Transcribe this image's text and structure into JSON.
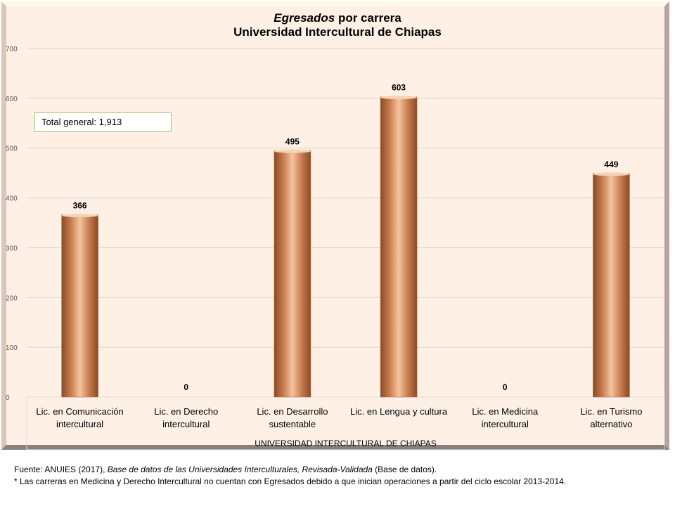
{
  "chart_data": {
    "type": "bar",
    "title_italic": "Egresados",
    "title_rest": " por carrera",
    "subtitle": "Universidad Intercultural de Chiapas",
    "categories": [
      "Lic. en Comunicación intercultural",
      "Lic. en Derecho intercultural",
      "Lic. en Desarrollo sustentable",
      "Lic. en Lengua y cultura",
      "Lic. en Medicina intercultural",
      "Lic. en Turismo alternativo"
    ],
    "values": [
      366,
      0,
      495,
      603,
      0,
      449
    ],
    "xlabel": "UNIVERSIDAD INTERCULTURAL DE CHIAPAS",
    "ylabel": "",
    "ylim": [
      0,
      700
    ],
    "yticks": [
      0,
      100,
      200,
      300,
      400,
      500,
      600,
      700
    ],
    "grid": true,
    "bar_color": "#c8845a"
  },
  "total_label": "Total general: 1,913",
  "notes": {
    "source_prefix": "Fuente: ANUIES (2017), ",
    "source_italic": "Base de datos de las Universidades  Interculturales, Revisada-Validada",
    "source_suffix": " (Base de datos).",
    "footnote": "* Las carreras en Medicina  y Derecho  Intercultural no cuentan con Egresados debido a que inician operaciones  a partir del ciclo escolar 2013-2014."
  }
}
